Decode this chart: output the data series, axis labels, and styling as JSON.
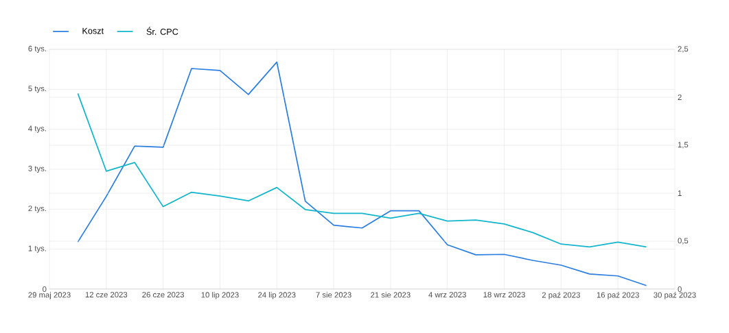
{
  "chart_data": {
    "type": "line",
    "x": [
      "2023-06-05",
      "2023-06-12",
      "2023-06-19",
      "2023-06-26",
      "2023-07-03",
      "2023-07-10",
      "2023-07-17",
      "2023-07-24",
      "2023-07-31",
      "2023-08-07",
      "2023-08-14",
      "2023-08-21",
      "2023-08-28",
      "2023-09-04",
      "2023-09-11",
      "2023-09-18",
      "2023-09-25",
      "2023-10-02",
      "2023-10-09",
      "2023-10-16",
      "2023-10-23"
    ],
    "series": [
      {
        "name": "Koszt",
        "color": "#2a7de1",
        "values": [
          1.18,
          2.32,
          3.58,
          3.55,
          5.52,
          5.47,
          4.87,
          5.68,
          2.2,
          1.6,
          1.53,
          1.96,
          1.96,
          1.11,
          0.86,
          0.87,
          0.72,
          0.6,
          0.38,
          0.33,
          0.09
        ]
      },
      {
        "name": "Śr. CPC",
        "color": "#12b5cb",
        "axis": "y2",
        "values": [
          2.04,
          1.23,
          1.32,
          0.86,
          1.01,
          0.97,
          0.92,
          1.06,
          0.83,
          0.79,
          0.79,
          0.74,
          0.79,
          0.71,
          0.72,
          0.68,
          0.59,
          0.47,
          0.44,
          0.49,
          0.44
        ]
      }
    ],
    "xlim": [
      "2023-05-29",
      "2023-10-30"
    ],
    "xticks": [
      {
        "value": "2023-05-29",
        "label": "29 maj 2023"
      },
      {
        "value": "2023-06-12",
        "label": "12 cze 2023"
      },
      {
        "value": "2023-06-26",
        "label": "26 cze 2023"
      },
      {
        "value": "2023-07-10",
        "label": "10 lip 2023"
      },
      {
        "value": "2023-07-24",
        "label": "24 lip 2023"
      },
      {
        "value": "2023-08-07",
        "label": "7 sie 2023"
      },
      {
        "value": "2023-08-21",
        "label": "21 sie 2023"
      },
      {
        "value": "2023-09-04",
        "label": "4 wrz 2023"
      },
      {
        "value": "2023-09-18",
        "label": "18 wrz 2023"
      },
      {
        "value": "2023-10-02",
        "label": "2 paź 2023"
      },
      {
        "value": "2023-10-16",
        "label": "16 paź 2023"
      },
      {
        "value": "2023-10-30",
        "label": "30 paź 2023"
      }
    ],
    "ylim": [
      0,
      6
    ],
    "yticks": [
      0,
      {
        "value": 1,
        "label": "1 tys."
      },
      {
        "value": 2,
        "label": "2 tys."
      },
      {
        "value": 3,
        "label": "3 tys."
      },
      {
        "value": 4,
        "label": "4 tys."
      },
      {
        "value": 5,
        "label": "5 tys."
      },
      {
        "value": 6,
        "label": "6 tys."
      }
    ],
    "y2lim": [
      0,
      2.5
    ],
    "y2ticks": [
      0,
      {
        "value": 0.5,
        "label": "0,5"
      },
      1,
      {
        "value": 1.5,
        "label": "1,5"
      },
      2,
      {
        "value": 2.5,
        "label": "2,5"
      }
    ],
    "grid": true,
    "legend": "top left"
  }
}
